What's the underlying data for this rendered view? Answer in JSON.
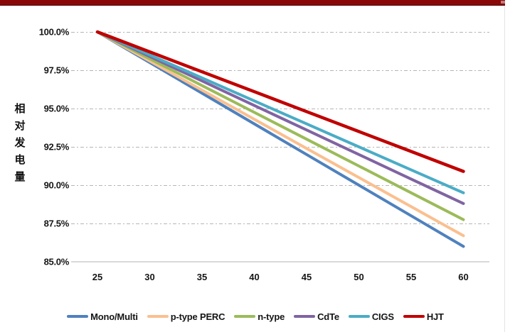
{
  "banner": {
    "color": "#8B0808"
  },
  "chart_data": {
    "type": "line",
    "title": "",
    "xlabel": "",
    "ylabel": "相对发电量",
    "x": [
      25,
      30,
      35,
      40,
      45,
      50,
      55,
      60
    ],
    "xticks": [
      "25",
      "30",
      "35",
      "40",
      "45",
      "50",
      "55",
      "60"
    ],
    "yticks": [
      "100.0%",
      "97.5%",
      "95.0%",
      "92.5%",
      "90.0%",
      "87.5%",
      "85.0%"
    ],
    "ylim": [
      85,
      100
    ],
    "xlim": [
      25,
      60
    ],
    "grid": "horizontal dash-dot",
    "legend_position": "bottom",
    "series": [
      {
        "name": "Mono/Multi",
        "color": "#4F81BD",
        "values": [
          100,
          98.0,
          96.0,
          94.0,
          92.0,
          90.0,
          88.0,
          86.0
        ]
      },
      {
        "name": "p-type PERC",
        "color": "#FAC090",
        "values": [
          100,
          98.1,
          96.2,
          94.3,
          92.4,
          90.5,
          88.6,
          86.7
        ]
      },
      {
        "name": "n-type",
        "color": "#9BBB59",
        "values": [
          100,
          98.25,
          96.5,
          94.75,
          93.0,
          91.25,
          89.5,
          87.75
        ]
      },
      {
        "name": "CdTe",
        "color": "#8064A2",
        "values": [
          100,
          98.4,
          96.8,
          95.2,
          93.6,
          92.0,
          90.4,
          88.8
        ]
      },
      {
        "name": "CIGS",
        "color": "#4BACC6",
        "values": [
          100,
          98.5,
          97.0,
          95.5,
          94.0,
          92.5,
          91.0,
          89.5
        ]
      },
      {
        "name": "HJT",
        "color": "#C00000",
        "values": [
          100,
          98.7,
          97.4,
          96.1,
          94.8,
          93.5,
          92.2,
          90.9
        ]
      }
    ]
  }
}
